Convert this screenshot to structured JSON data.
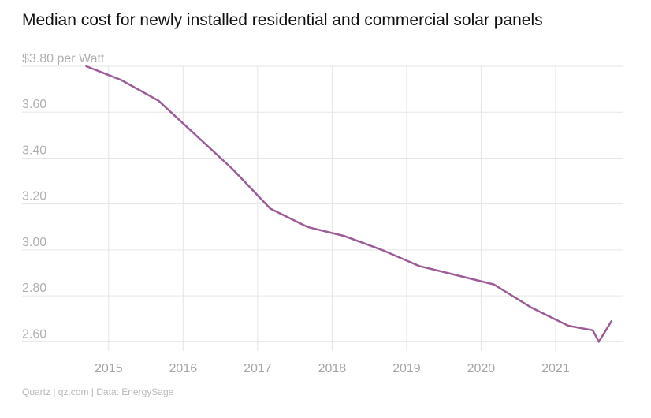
{
  "chart_data": {
    "type": "line",
    "title": "Median cost for newly installed residential and commercial solar panels",
    "ylabel_unit": "per Watt",
    "y_top_prefix": "$",
    "ylim": [
      2.56,
      3.8
    ],
    "yticks": [
      3.8,
      3.6,
      3.4,
      3.2,
      3.0,
      2.8,
      2.6
    ],
    "ytick_labels": [
      "3.80",
      "3.60",
      "3.40",
      "3.20",
      "3.00",
      "2.80",
      "2.60"
    ],
    "xlim": [
      2014.6,
      2021.9
    ],
    "xticks": [
      2015,
      2016,
      2017,
      2018,
      2019,
      2020,
      2021
    ],
    "xtick_labels": [
      "2015",
      "2016",
      "2017",
      "2018",
      "2019",
      "2020",
      "2021"
    ],
    "grid": true,
    "line_color": "#9b5c98",
    "series": [
      {
        "x": [
          2014.7,
          2015.17,
          2015.67,
          2016.17,
          2016.67,
          2017.17,
          2017.67,
          2018.17,
          2018.67,
          2019.17,
          2019.67,
          2020.17,
          2020.67,
          2021.17,
          2021.5,
          2021.58,
          2021.75
        ],
        "y": [
          3.8,
          3.74,
          3.65,
          3.5,
          3.35,
          3.18,
          3.1,
          3.06,
          3.0,
          2.93,
          2.89,
          2.85,
          2.75,
          2.67,
          2.65,
          2.6,
          2.69
        ]
      }
    ]
  },
  "source": "Quartz | qz.com | Data: EnergySage"
}
